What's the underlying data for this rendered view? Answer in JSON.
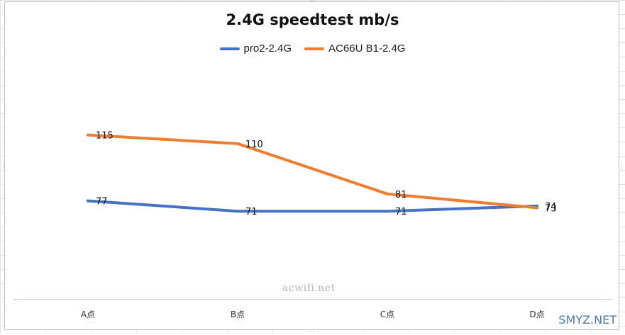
{
  "chart_data": {
    "type": "line",
    "title": "2.4G speedtest  mb/s",
    "categories": [
      "A点",
      "B点",
      "C点",
      "D点"
    ],
    "series": [
      {
        "name": "pro2-2.4G",
        "values": [
          77,
          71,
          71,
          74
        ],
        "color": "#4472c4"
      },
      {
        "name": "AC66U B1-2.4G",
        "values": [
          115,
          110,
          81,
          73
        ],
        "color": "#ed7d31"
      }
    ],
    "ylim": [
      20,
      150
    ],
    "legend_position": "top",
    "data_labels": true,
    "grid": false
  },
  "watermark": "acwifi.net",
  "brand": "SMYZ.NET"
}
